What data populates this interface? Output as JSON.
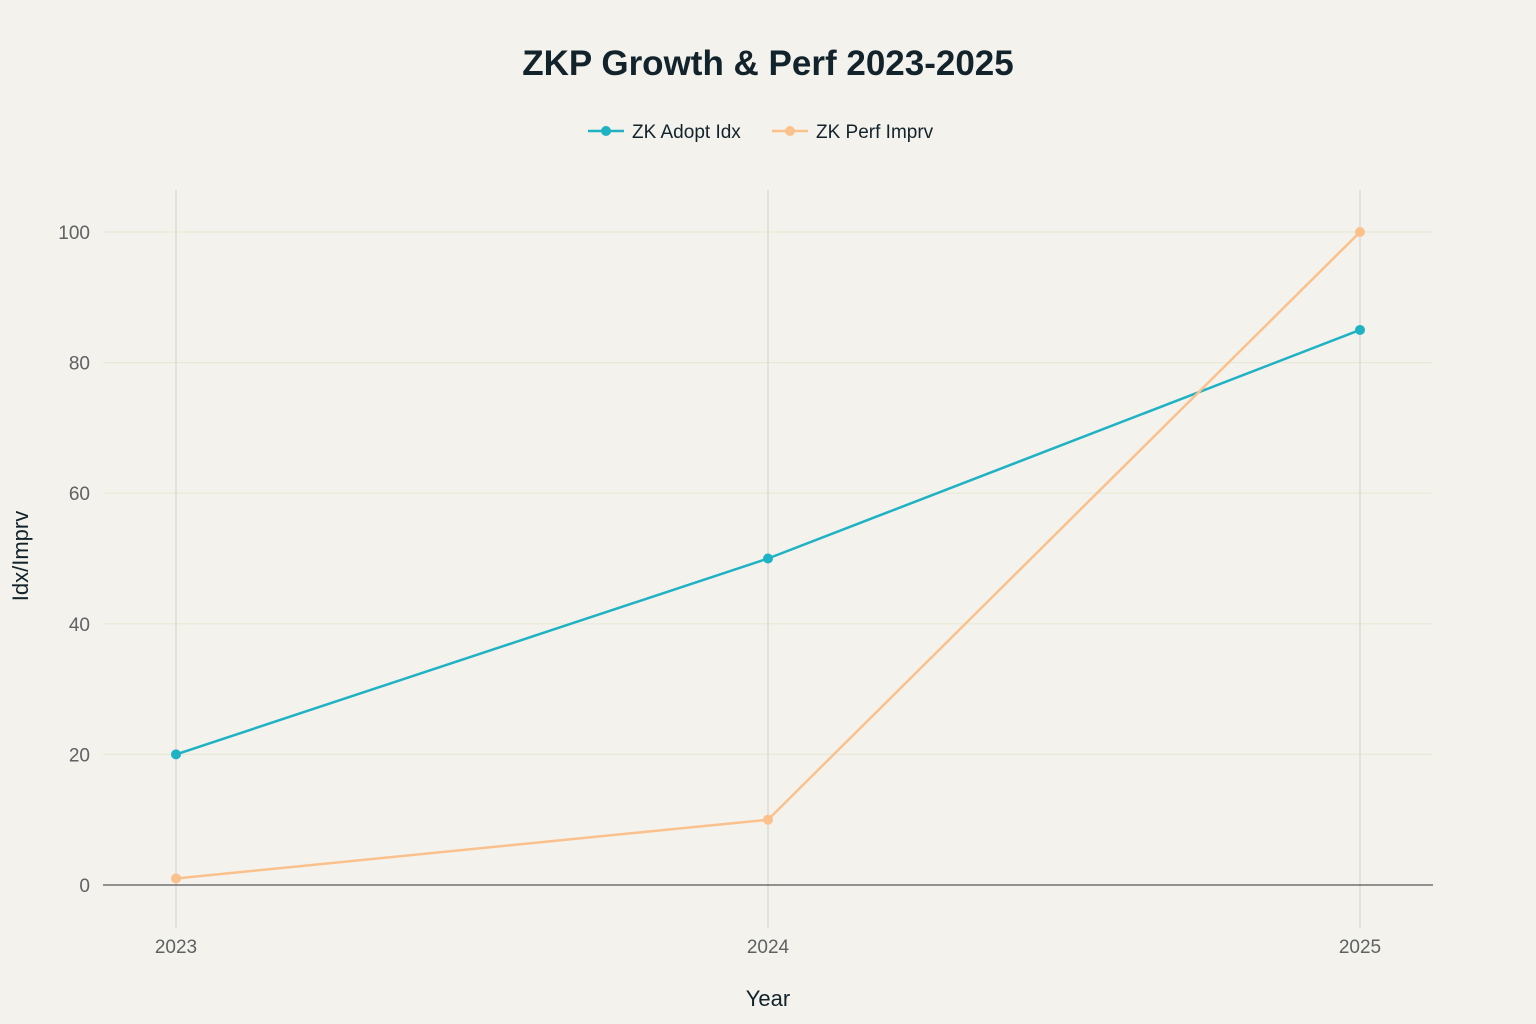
{
  "chart_data": {
    "type": "line",
    "title": "ZKP Growth & Perf 2023-2025",
    "xlabel": "Year",
    "ylabel": "Idx/Imprv",
    "categories": [
      "2023",
      "2024",
      "2025"
    ],
    "ylim": [
      0,
      100
    ],
    "yticks": [
      0,
      20,
      40,
      60,
      80,
      100
    ],
    "grid": true,
    "legend_position": "top-center",
    "series": [
      {
        "name": "ZK Adopt Idx",
        "color": "#1fb2c4",
        "values": [
          20,
          50,
          85
        ]
      },
      {
        "name": "ZK Perf Imprv",
        "color": "#fbc18d",
        "values": [
          1,
          10,
          100
        ]
      }
    ]
  }
}
